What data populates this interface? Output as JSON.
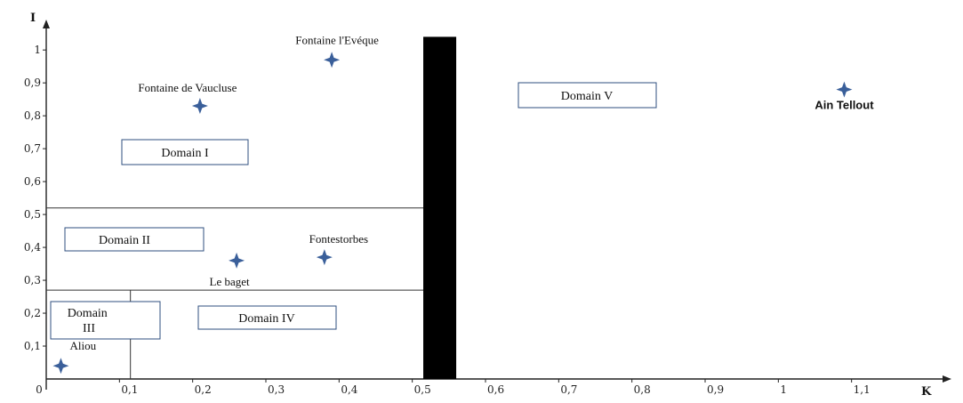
{
  "chart_data": {
    "type": "scatter",
    "title": "",
    "xlabel": "K",
    "ylabel": "I",
    "xlim": [
      0,
      1.2
    ],
    "ylim": [
      0,
      1.06
    ],
    "xticks": [
      {
        "value": 0,
        "label": "0"
      },
      {
        "value": 0.1,
        "label": "0,1"
      },
      {
        "value": 0.2,
        "label": "0,2"
      },
      {
        "value": 0.3,
        "label": "0,3"
      },
      {
        "value": 0.4,
        "label": "0,4"
      },
      {
        "value": 0.5,
        "label": "0,5"
      },
      {
        "value": 0.6,
        "label": "0,6"
      },
      {
        "value": 0.7,
        "label": "0,7"
      },
      {
        "value": 0.8,
        "label": "0,8"
      },
      {
        "value": 0.9,
        "label": "0,9"
      },
      {
        "value": 1.0,
        "label": "1"
      },
      {
        "value": 1.1,
        "label": "1,1"
      }
    ],
    "yticks": [
      {
        "value": 0.1,
        "label": "0,1"
      },
      {
        "value": 0.2,
        "label": "0,2"
      },
      {
        "value": 0.3,
        "label": "0,3"
      },
      {
        "value": 0.4,
        "label": "0,4"
      },
      {
        "value": 0.5,
        "label": "0,5"
      },
      {
        "value": 0.6,
        "label": "0,6"
      },
      {
        "value": 0.7,
        "label": "0,7"
      },
      {
        "value": 0.8,
        "label": "0,8"
      },
      {
        "value": 0.9,
        "label": "0,9"
      },
      {
        "value": 1.0,
        "label": "1"
      }
    ],
    "points": [
      {
        "name": "Fontaine l'Evéque",
        "x": 0.39,
        "y": 0.97
      },
      {
        "name": "Fontaine de Vaucluse",
        "x": 0.21,
        "y": 0.83
      },
      {
        "name": "Fontestorbes",
        "x": 0.38,
        "y": 0.37
      },
      {
        "name": "Le baget",
        "x": 0.26,
        "y": 0.36
      },
      {
        "name": "Aliou",
        "x": 0.02,
        "y": 0.04
      },
      {
        "name": "Ain Tellout",
        "x": 1.09,
        "y": 0.88
      }
    ],
    "dividers": [
      {
        "orientation": "horizontal",
        "y": 0.52,
        "x_from": 0,
        "x_to": 0.515
      },
      {
        "orientation": "horizontal",
        "y": 0.27,
        "x_from": 0,
        "x_to": 0.515
      },
      {
        "orientation": "vertical",
        "x": 0.115,
        "y_from": 0,
        "y_to": 0.27
      }
    ],
    "threshold_band": {
      "x_from": 0.515,
      "x_to": 0.56,
      "y_from": 0,
      "y_to": 1.04
    },
    "domains": [
      {
        "label": "Domain I"
      },
      {
        "label": "Domain II"
      },
      {
        "label": "Domain III"
      },
      {
        "label": "Domain IV"
      },
      {
        "label": "Domain V"
      }
    ],
    "marker_color": "#3a5f9a",
    "grid": false
  }
}
